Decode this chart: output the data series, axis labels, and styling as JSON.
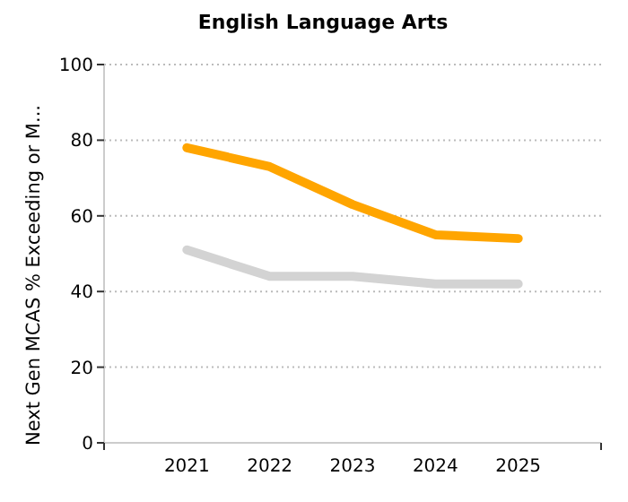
{
  "chart_data": {
    "type": "line",
    "title": "English Language Arts",
    "ylabel": "Next Gen MCAS % Exceeding or M...",
    "categories": [
      "2021",
      "2022",
      "2023",
      "2024",
      "2025"
    ],
    "series": [
      {
        "color": "#ffa500",
        "values": [
          78,
          73,
          63,
          55,
          54
        ]
      },
      {
        "color": "#d3d3d3",
        "values": [
          51,
          44,
          44,
          42,
          42
        ]
      }
    ],
    "ylim": [
      0,
      100
    ],
    "yticks": [
      0,
      20,
      40,
      60,
      80,
      100
    ],
    "grid": "y",
    "marker": "none",
    "line_style": "solid"
  }
}
